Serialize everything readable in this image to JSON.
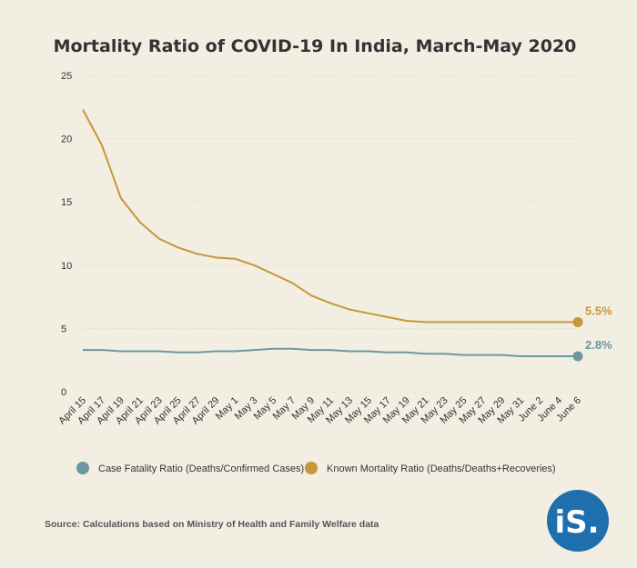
{
  "chart_data": {
    "type": "line",
    "title": "Mortality Ratio of COVID-19 In India, March-May 2020",
    "xlabel": "",
    "ylabel": "",
    "ylim": [
      0,
      25
    ],
    "yticks": [
      0,
      5,
      10,
      15,
      20,
      25
    ],
    "grid": true,
    "legend_position": "bottom",
    "categories": [
      "April 15",
      "April 17",
      "April 19",
      "April 21",
      "April 23",
      "April 25",
      "April 27",
      "April 29",
      "May 1",
      "May 3",
      "May 5",
      "May 7",
      "May 9",
      "May 11",
      "May 13",
      "May 15",
      "May 17",
      "May 19",
      "May 21",
      "May 23",
      "May 25",
      "May 27",
      "May 29",
      "May 31",
      "June 2",
      "June 4",
      "June 6"
    ],
    "series": [
      {
        "name": "Case Fatality Ratio (Deaths/Confirmed Cases)",
        "color": "#6b98a0",
        "values": [
          3.3,
          3.3,
          3.2,
          3.2,
          3.2,
          3.1,
          3.1,
          3.2,
          3.2,
          3.3,
          3.4,
          3.4,
          3.3,
          3.3,
          3.2,
          3.2,
          3.1,
          3.1,
          3.0,
          3.0,
          2.9,
          2.9,
          2.9,
          2.8,
          2.8,
          2.8,
          2.8
        ],
        "end_label": "2.8%"
      },
      {
        "name": "Known Mortality Ratio (Deaths/Deaths+Recoveries)",
        "color": "#c9963a",
        "values": [
          22.3,
          19.5,
          15.3,
          13.4,
          12.1,
          11.4,
          10.9,
          10.6,
          10.5,
          10.0,
          9.3,
          8.6,
          7.6,
          7.0,
          6.5,
          6.2,
          5.9,
          5.6,
          5.5,
          5.5,
          5.5,
          5.5,
          5.5,
          5.5,
          5.5,
          5.5,
          5.5
        ],
        "end_label": "5.5%"
      }
    ]
  },
  "source": "Source: Calculations based on Ministry of Health and Family Welfare data",
  "logo": {
    "text": "iS.",
    "color": "#1f6fae"
  }
}
